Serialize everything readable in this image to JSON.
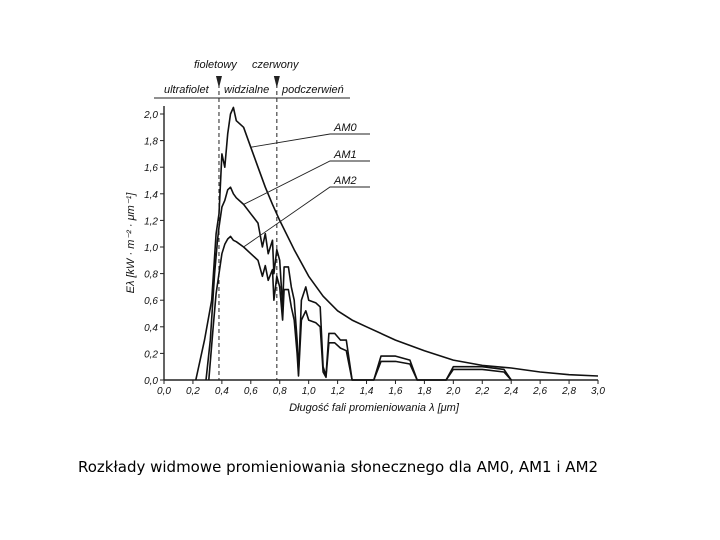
{
  "caption": "Rozkłady widmowe promieniowania słonecznego dla AM0, AM1 i AM2",
  "chart_data": {
    "type": "line",
    "xlabel": "Długość fali promieniowania λ [μm]",
    "ylabel": "Eλ [kW · m⁻² · μm⁻¹]",
    "xlim": [
      0.0,
      3.0
    ],
    "ylim": [
      0.0,
      2.0
    ],
    "x_ticks": [
      "0,0",
      "0,2",
      "0,4",
      "0,6",
      "0,8",
      "1,0",
      "1,2",
      "1,4",
      "1,6",
      "1,8",
      "2,0",
      "2,2",
      "2,4",
      "2,6",
      "2,8",
      "3,0"
    ],
    "y_ticks": [
      "0,0",
      "0,2",
      "0,4",
      "0,6",
      "0,8",
      "1,0",
      "1,2",
      "1,4",
      "1,6",
      "1,8",
      "2,0"
    ],
    "grid": false,
    "regions": [
      {
        "label": "ultrafiolet"
      },
      {
        "label": "widzialne"
      },
      {
        "label": "podczerwień"
      }
    ],
    "boundaries": [
      {
        "label": "fioletowy",
        "x": 0.38
      },
      {
        "label": "czerwony",
        "x": 0.78
      }
    ],
    "series": [
      {
        "name": "AM0",
        "points": [
          [
            0.22,
            0.0
          ],
          [
            0.28,
            0.3
          ],
          [
            0.33,
            0.6
          ],
          [
            0.36,
            1.1
          ],
          [
            0.38,
            1.25
          ],
          [
            0.4,
            1.7
          ],
          [
            0.42,
            1.6
          ],
          [
            0.44,
            1.85
          ],
          [
            0.46,
            2.0
          ],
          [
            0.48,
            2.05
          ],
          [
            0.5,
            1.95
          ],
          [
            0.55,
            1.9
          ],
          [
            0.6,
            1.75
          ],
          [
            0.65,
            1.6
          ],
          [
            0.7,
            1.45
          ],
          [
            0.75,
            1.32
          ],
          [
            0.8,
            1.2
          ],
          [
            0.9,
            0.98
          ],
          [
            1.0,
            0.78
          ],
          [
            1.1,
            0.63
          ],
          [
            1.2,
            0.52
          ],
          [
            1.3,
            0.45
          ],
          [
            1.4,
            0.4
          ],
          [
            1.6,
            0.3
          ],
          [
            1.8,
            0.22
          ],
          [
            2.0,
            0.15
          ],
          [
            2.2,
            0.11
          ],
          [
            2.4,
            0.09
          ],
          [
            2.6,
            0.06
          ],
          [
            2.8,
            0.04
          ],
          [
            3.0,
            0.03
          ]
        ]
      },
      {
        "name": "AM1",
        "points": [
          [
            0.29,
            0.0
          ],
          [
            0.32,
            0.3
          ],
          [
            0.35,
            0.8
          ],
          [
            0.37,
            1.05
          ],
          [
            0.38,
            1.15
          ],
          [
            0.4,
            1.3
          ],
          [
            0.42,
            1.35
          ],
          [
            0.44,
            1.43
          ],
          [
            0.46,
            1.45
          ],
          [
            0.48,
            1.4
          ],
          [
            0.5,
            1.37
          ],
          [
            0.55,
            1.32
          ],
          [
            0.6,
            1.25
          ],
          [
            0.65,
            1.18
          ],
          [
            0.68,
            1.0
          ],
          [
            0.7,
            1.1
          ],
          [
            0.72,
            0.95
          ],
          [
            0.75,
            1.05
          ],
          [
            0.76,
            0.8
          ],
          [
            0.78,
            0.98
          ],
          [
            0.8,
            0.9
          ],
          [
            0.82,
            0.55
          ],
          [
            0.83,
            0.85
          ],
          [
            0.86,
            0.85
          ],
          [
            0.88,
            0.7
          ],
          [
            0.9,
            0.6
          ],
          [
            0.92,
            0.3
          ],
          [
            0.93,
            0.05
          ],
          [
            0.95,
            0.6
          ],
          [
            0.98,
            0.7
          ],
          [
            1.0,
            0.6
          ],
          [
            1.05,
            0.58
          ],
          [
            1.08,
            0.55
          ],
          [
            1.1,
            0.1
          ],
          [
            1.12,
            0.03
          ],
          [
            1.14,
            0.35
          ],
          [
            1.18,
            0.35
          ],
          [
            1.22,
            0.3
          ],
          [
            1.26,
            0.3
          ],
          [
            1.3,
            0.0
          ],
          [
            1.45,
            0.0
          ],
          [
            1.5,
            0.18
          ],
          [
            1.6,
            0.18
          ],
          [
            1.7,
            0.15
          ],
          [
            1.75,
            0.0
          ],
          [
            1.95,
            0.0
          ],
          [
            2.0,
            0.1
          ],
          [
            2.2,
            0.1
          ],
          [
            2.35,
            0.08
          ],
          [
            2.4,
            0.0
          ]
        ]
      },
      {
        "name": "AM2",
        "points": [
          [
            0.31,
            0.0
          ],
          [
            0.34,
            0.4
          ],
          [
            0.36,
            0.65
          ],
          [
            0.38,
            0.8
          ],
          [
            0.4,
            0.95
          ],
          [
            0.42,
            1.02
          ],
          [
            0.44,
            1.06
          ],
          [
            0.46,
            1.08
          ],
          [
            0.48,
            1.05
          ],
          [
            0.5,
            1.04
          ],
          [
            0.55,
            1.0
          ],
          [
            0.6,
            0.95
          ],
          [
            0.65,
            0.9
          ],
          [
            0.68,
            0.78
          ],
          [
            0.7,
            0.86
          ],
          [
            0.72,
            0.75
          ],
          [
            0.75,
            0.83
          ],
          [
            0.76,
            0.6
          ],
          [
            0.78,
            0.78
          ],
          [
            0.8,
            0.7
          ],
          [
            0.82,
            0.45
          ],
          [
            0.83,
            0.68
          ],
          [
            0.86,
            0.68
          ],
          [
            0.88,
            0.55
          ],
          [
            0.9,
            0.45
          ],
          [
            0.92,
            0.2
          ],
          [
            0.93,
            0.03
          ],
          [
            0.95,
            0.45
          ],
          [
            0.98,
            0.52
          ],
          [
            1.0,
            0.45
          ],
          [
            1.05,
            0.43
          ],
          [
            1.08,
            0.4
          ],
          [
            1.1,
            0.06
          ],
          [
            1.12,
            0.02
          ],
          [
            1.14,
            0.28
          ],
          [
            1.18,
            0.28
          ],
          [
            1.22,
            0.24
          ],
          [
            1.26,
            0.22
          ],
          [
            1.3,
            0.0
          ],
          [
            1.45,
            0.0
          ],
          [
            1.5,
            0.14
          ],
          [
            1.6,
            0.14
          ],
          [
            1.7,
            0.12
          ],
          [
            1.75,
            0.0
          ],
          [
            1.95,
            0.0
          ],
          [
            2.0,
            0.08
          ],
          [
            2.2,
            0.08
          ],
          [
            2.35,
            0.06
          ],
          [
            2.4,
            0.0
          ]
        ]
      }
    ],
    "annotations": [
      "AM0",
      "AM1",
      "AM2"
    ]
  }
}
